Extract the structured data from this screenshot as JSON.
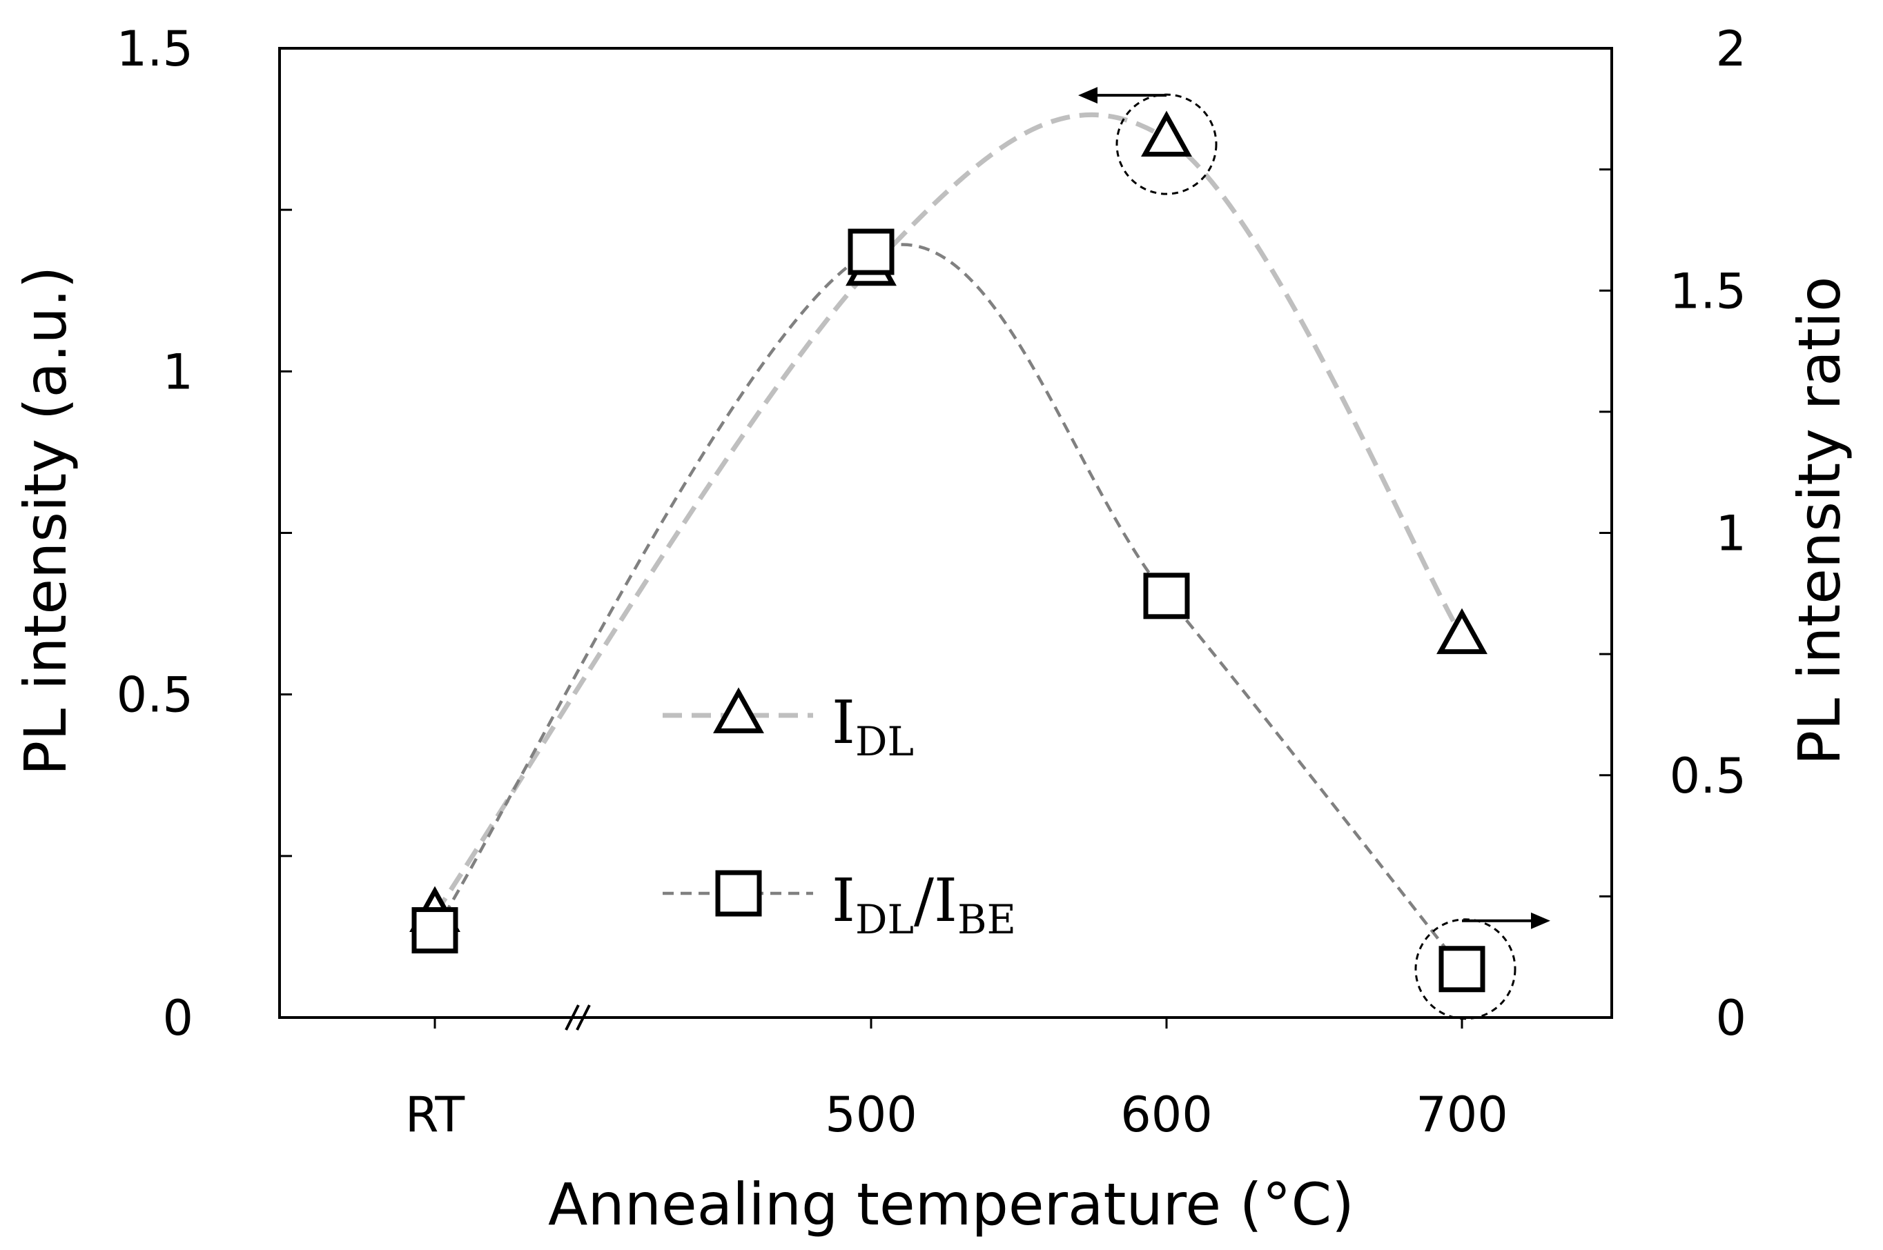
{
  "chart_data": {
    "type": "line",
    "x_categories": [
      "RT",
      "500",
      "600",
      "700"
    ],
    "xlabel": "Annealing temperature (°C)",
    "ylabel_left": "PL intensity (a.u.)",
    "ylabel_right": "PL intensity ratio",
    "ylim_left": [
      0,
      1.5
    ],
    "ylim_right": [
      0,
      2
    ],
    "yticks_left": [
      {
        "value": 0,
        "label": "0"
      },
      {
        "value": 0.25,
        "label": ""
      },
      {
        "value": 0.5,
        "label": "0.5"
      },
      {
        "value": 0.75,
        "label": ""
      },
      {
        "value": 1,
        "label": "1"
      },
      {
        "value": 1.25,
        "label": ""
      },
      {
        "value": 1.5,
        "label": "1.5"
      }
    ],
    "yticks_right": [
      {
        "value": 0,
        "label": "0"
      },
      {
        "value": 0.25,
        "label": ""
      },
      {
        "value": 0.5,
        "label": "0.5"
      },
      {
        "value": 0.75,
        "label": ""
      },
      {
        "value": 1,
        "label": "1"
      },
      {
        "value": 1.25,
        "label": ""
      },
      {
        "value": 1.5,
        "label": "1.5"
      },
      {
        "value": 1.75,
        "label": ""
      },
      {
        "value": 2,
        "label": "2"
      }
    ],
    "axis_break": "between RT and 500",
    "legend_position": "lower-center",
    "series": [
      {
        "label_main": "I",
        "label_sub": "DL",
        "label_tail": "",
        "axis": "left",
        "marker": "triangle",
        "line_style": "dashed",
        "color": "#bfbfbf",
        "values": [
          0.16,
          1.16,
          1.36,
          0.59
        ],
        "indicator_arrow": "left"
      },
      {
        "label_main": "I",
        "label_sub": "DL",
        "label_tail": "/I",
        "label_sub2": "BE",
        "axis": "right",
        "marker": "square",
        "line_style": "dashed",
        "color": "#808080",
        "values": [
          0.18,
          1.58,
          0.87,
          0.1
        ],
        "indicator_arrow": "right"
      }
    ],
    "grid": false
  }
}
